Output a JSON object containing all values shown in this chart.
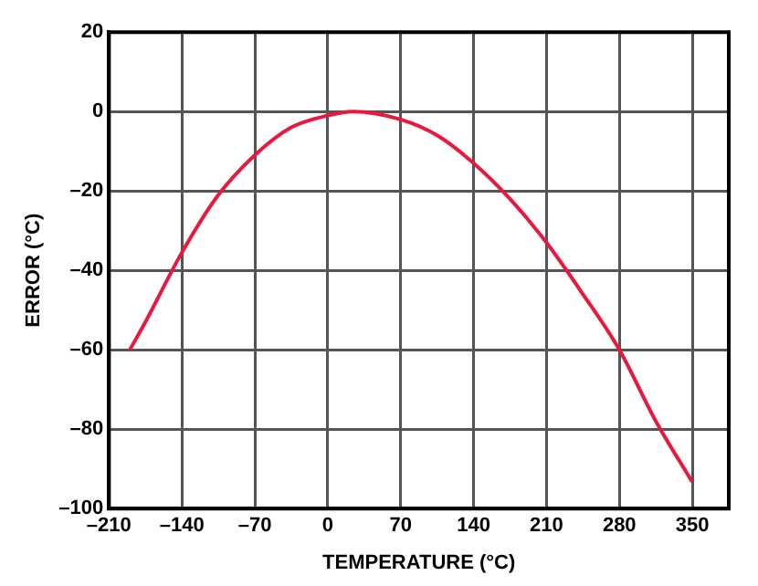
{
  "chart_data": {
    "type": "line",
    "xlabel": "TEMPERATURE (°C)",
    "ylabel": "ERROR (°C)",
    "x": [
      -190,
      -175,
      -140,
      -105,
      -70,
      -35,
      0,
      25,
      70,
      105,
      140,
      175,
      210,
      245,
      280,
      315,
      350
    ],
    "series": [
      {
        "color": "#e8193c",
        "values": [
          -60,
          -53,
          -35.5,
          -21,
          -11,
          -4,
          -1,
          0,
          -2,
          -6,
          -13,
          -22,
          -33,
          -46,
          -60,
          -78,
          -93.3
        ]
      }
    ],
    "xlim": [
      -210,
      385
    ],
    "xticks": [
      {
        "value": -210,
        "label": "–210"
      },
      {
        "value": -140,
        "label": "–140"
      },
      {
        "value": -70,
        "label": "–70"
      },
      0,
      70,
      140,
      210,
      280,
      350
    ],
    "ylim": [
      -100,
      20
    ],
    "yticks": [
      {
        "value": -100,
        "label": "–100"
      },
      {
        "value": -80,
        "label": "–80"
      },
      {
        "value": -60,
        "label": "–60"
      },
      {
        "value": -40,
        "label": "–40"
      },
      {
        "value": -20,
        "label": "–20"
      },
      0,
      20
    ],
    "grid": true,
    "legend": false,
    "marker": "none",
    "line_style": "solid"
  }
}
